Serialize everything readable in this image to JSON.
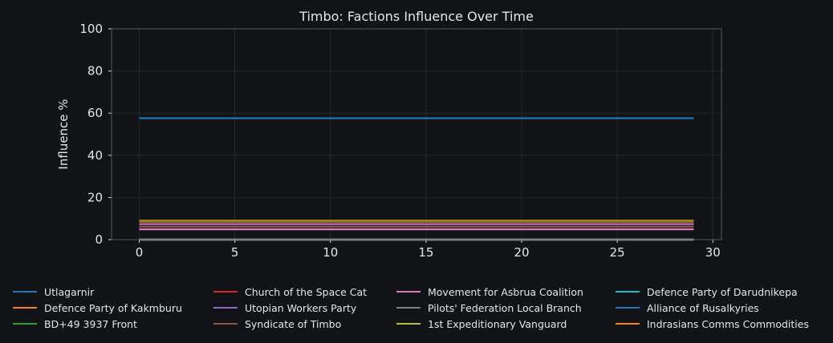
{
  "chart_data": {
    "type": "line",
    "title": "Timbo: Factions Influence Over Time",
    "xlabel": "",
    "ylabel": "Influence %",
    "xlim": [
      -1.45,
      30.45
    ],
    "ylim": [
      0,
      100
    ],
    "xticks": [
      0,
      5,
      10,
      15,
      20,
      25,
      30
    ],
    "yticks": [
      0,
      20,
      40,
      60,
      80,
      100
    ],
    "grid": true,
    "legend_position": "bottom",
    "x_start": 0,
    "x_end": 29,
    "series": [
      {
        "name": "Utlagarnir",
        "color": "#1f77b4",
        "value": 57.6
      },
      {
        "name": "Defence Party of Kakmburu",
        "color": "#ff7f0e",
        "value": 9.0
      },
      {
        "name": "BD+49 3937 Front",
        "color": "#2ca02c",
        "value": 8.5
      },
      {
        "name": "Church of the Space Cat",
        "color": "#d62728",
        "value": 7.8
      },
      {
        "name": "Utopian Workers Party",
        "color": "#9467bd",
        "value": 7.2
      },
      {
        "name": "Syndicate of Timbo",
        "color": "#8c564b",
        "value": 6.1
      },
      {
        "name": "Movement for Asbrua Coalition",
        "color": "#e377c2",
        "value": 4.9
      },
      {
        "name": "Pilots' Federation Local Branch",
        "color": "#7f7f7f",
        "value": 0
      },
      {
        "name": "1st Expeditionary Vanguard",
        "color": "#bcbd22",
        "value": 0
      },
      {
        "name": "Defence Party of Darudnikepa",
        "color": "#17becf",
        "value": 0
      },
      {
        "name": "Alliance of Rusalkyries",
        "color": "#1f77b4",
        "value": 0
      },
      {
        "name": "Indrasians Comms Commodities",
        "color": "#ff7f0e",
        "value": 0
      }
    ]
  }
}
